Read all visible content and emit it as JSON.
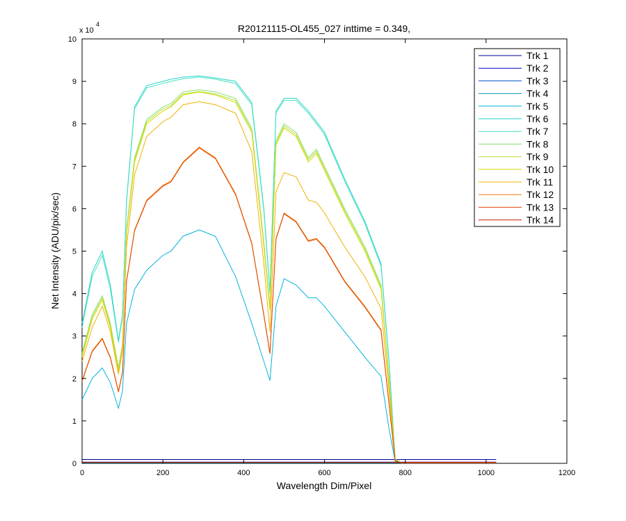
{
  "chart_data": {
    "type": "line",
    "title": "R20121115-OL455_027 inttime = 0.349,",
    "xlabel": "Wavelength Dim/Pixel",
    "ylabel": "Net Intensity (ADU/pix/sec)",
    "xlim": [
      0,
      1200
    ],
    "ylim": [
      0,
      100000
    ],
    "x_ticks": [
      0,
      200,
      400,
      600,
      800,
      1000,
      1200
    ],
    "y_ticks": [
      0,
      1,
      2,
      3,
      4,
      5,
      6,
      7,
      8,
      9,
      10
    ],
    "y_exponent_label": "x 10",
    "y_exponent_power": "4",
    "grid": false,
    "legend_position": "top-right",
    "series": [
      {
        "name": "Trk 1",
        "color": "#000099",
        "x": [
          0,
          1025
        ],
        "y": [
          900,
          900
        ]
      },
      {
        "name": "Trk 2",
        "color": "#0000cc",
        "x": [
          0,
          1025
        ],
        "y": [
          300,
          300
        ]
      },
      {
        "name": "Trk 3",
        "color": "#0050d0",
        "x": [
          0,
          1025
        ],
        "y": [
          200,
          200
        ]
      },
      {
        "name": "Trk 4",
        "color": "#0099bb",
        "x": [
          0,
          1025
        ],
        "y": [
          150,
          150
        ]
      },
      {
        "name": "Trk 5",
        "color": "#00b4dc",
        "x": [
          0,
          25,
          50,
          70,
          90,
          100,
          110,
          130,
          160,
          200,
          220,
          250,
          290,
          330,
          380,
          420,
          450,
          465,
          480,
          500,
          530,
          560,
          580,
          600,
          650,
          700,
          740,
          760,
          775,
          790,
          1025
        ],
        "y": [
          15000,
          20000,
          22500,
          19000,
          13000,
          17000,
          33000,
          41000,
          45500,
          49000,
          50000,
          53500,
          55000,
          53500,
          44000,
          33000,
          24000,
          19500,
          37000,
          43500,
          42000,
          39000,
          39000,
          37000,
          31000,
          25000,
          20500,
          8000,
          500,
          100,
          100
        ]
      },
      {
        "name": "Trk 6",
        "color": "#22d4c8",
        "x": [
          0,
          25,
          50,
          70,
          90,
          100,
          110,
          130,
          160,
          200,
          220,
          250,
          290,
          330,
          380,
          420,
          450,
          465,
          480,
          500,
          530,
          560,
          580,
          600,
          650,
          700,
          740,
          760,
          775,
          790,
          1025
        ],
        "y": [
          33000,
          45000,
          50000,
          42000,
          29000,
          35000,
          62000,
          84000,
          89000,
          90000,
          90500,
          91000,
          91300,
          90800,
          90000,
          85000,
          60000,
          40500,
          83000,
          86000,
          86000,
          83000,
          80500,
          78000,
          67000,
          57000,
          47000,
          24000,
          1000,
          200,
          200
        ]
      },
      {
        "name": "Trk 7",
        "color": "#44e0c0",
        "x": [
          0,
          25,
          50,
          70,
          90,
          100,
          110,
          130,
          160,
          200,
          220,
          250,
          290,
          330,
          380,
          420,
          450,
          465,
          480,
          500,
          530,
          560,
          580,
          600,
          650,
          700,
          740,
          760,
          775,
          790,
          1025
        ],
        "y": [
          32000,
          44000,
          49000,
          41000,
          28500,
          34500,
          61500,
          83500,
          88500,
          89500,
          90000,
          90600,
          91000,
          90500,
          89500,
          84500,
          59500,
          40000,
          82500,
          85500,
          85500,
          82500,
          80000,
          77500,
          66500,
          56500,
          46500,
          23500,
          900,
          200,
          200
        ]
      },
      {
        "name": "Trk 8",
        "color": "#88e070",
        "x": [
          0,
          25,
          50,
          70,
          90,
          100,
          110,
          130,
          160,
          200,
          220,
          250,
          290,
          330,
          380,
          420,
          450,
          465,
          480,
          500,
          530,
          560,
          580,
          600,
          650,
          700,
          740,
          760,
          775,
          790,
          1025
        ],
        "y": [
          26000,
          35000,
          39500,
          33000,
          22500,
          28000,
          55000,
          72000,
          81000,
          84000,
          84800,
          87500,
          88000,
          87500,
          86000,
          79000,
          52000,
          37000,
          76000,
          80000,
          78000,
          72000,
          74000,
          70000,
          60000,
          51000,
          42000,
          20000,
          800,
          200,
          200
        ]
      },
      {
        "name": "Trk 9",
        "color": "#b4e040",
        "x": [
          0,
          25,
          50,
          70,
          90,
          100,
          110,
          130,
          160,
          200,
          220,
          250,
          290,
          330,
          380,
          420,
          450,
          465,
          480,
          500,
          530,
          560,
          580,
          600,
          650,
          700,
          740,
          760,
          775,
          790,
          1025
        ],
        "y": [
          25500,
          34500,
          39000,
          32500,
          22000,
          27500,
          54500,
          71500,
          80500,
          83500,
          84300,
          87000,
          87600,
          87000,
          85500,
          78500,
          51500,
          36500,
          75500,
          79500,
          77500,
          71500,
          73500,
          69500,
          59500,
          50500,
          41500,
          19500,
          800,
          200,
          200
        ]
      },
      {
        "name": "Trk 10",
        "color": "#d8d800",
        "x": [
          0,
          25,
          50,
          70,
          90,
          100,
          110,
          130,
          160,
          200,
          220,
          250,
          290,
          330,
          380,
          420,
          450,
          465,
          480,
          500,
          530,
          560,
          580,
          600,
          650,
          700,
          740,
          760,
          775,
          790,
          1025
        ],
        "y": [
          25000,
          34000,
          38500,
          32000,
          21500,
          27000,
          54000,
          71000,
          80000,
          83000,
          84000,
          86800,
          87500,
          86800,
          85000,
          78000,
          51000,
          36000,
          75000,
          79000,
          77000,
          71000,
          73000,
          69000,
          59000,
          50000,
          41000,
          19000,
          800,
          200,
          200
        ]
      },
      {
        "name": "Trk 11",
        "color": "#f0b000",
        "x": [
          0,
          25,
          50,
          70,
          90,
          100,
          110,
          130,
          160,
          200,
          220,
          250,
          290,
          330,
          380,
          420,
          450,
          465,
          480,
          500,
          530,
          560,
          580,
          600,
          650,
          700,
          740,
          760,
          775,
          790,
          1025
        ],
        "y": [
          24000,
          32000,
          37000,
          31000,
          21000,
          26500,
          51000,
          68000,
          77000,
          80500,
          81500,
          84500,
          85200,
          84500,
          82500,
          73500,
          47000,
          31000,
          64000,
          68500,
          67500,
          62000,
          61500,
          59000,
          51000,
          44000,
          36500,
          17000,
          700,
          150,
          150
        ]
      },
      {
        "name": "Trk 12",
        "color": "#f07800",
        "x": [
          0,
          25,
          50,
          70,
          90,
          100,
          110,
          130,
          160,
          200,
          220,
          250,
          290,
          330,
          380,
          420,
          450,
          465,
          480,
          500,
          530,
          560,
          580,
          600,
          650,
          700,
          740,
          760,
          775,
          790,
          1025
        ],
        "y": [
          19500,
          26500,
          29500,
          25000,
          17000,
          21500,
          43000,
          55000,
          62000,
          65500,
          66500,
          71000,
          74500,
          72000,
          63500,
          52000,
          35000,
          26000,
          53000,
          59000,
          57000,
          52500,
          53000,
          51000,
          43000,
          37000,
          31500,
          14000,
          600,
          150,
          150
        ]
      },
      {
        "name": "Trk 13",
        "color": "#e04800",
        "x": [
          0,
          25,
          50,
          70,
          90,
          100,
          110,
          130,
          160,
          200,
          220,
          250,
          290,
          330,
          380,
          420,
          450,
          465,
          480,
          500,
          530,
          560,
          580,
          600,
          650,
          700,
          740,
          760,
          775,
          790,
          1025
        ],
        "y": [
          19300,
          26300,
          29300,
          24800,
          16800,
          21300,
          42800,
          54800,
          61800,
          65300,
          66300,
          70800,
          74300,
          71800,
          63300,
          51800,
          34800,
          25800,
          52800,
          58800,
          56800,
          52300,
          52800,
          50800,
          42800,
          36800,
          31300,
          13800,
          600,
          150,
          150
        ]
      },
      {
        "name": "Trk 14",
        "color": "#c81800",
        "x": [
          0,
          1025
        ],
        "y": [
          250,
          250
        ]
      }
    ]
  }
}
